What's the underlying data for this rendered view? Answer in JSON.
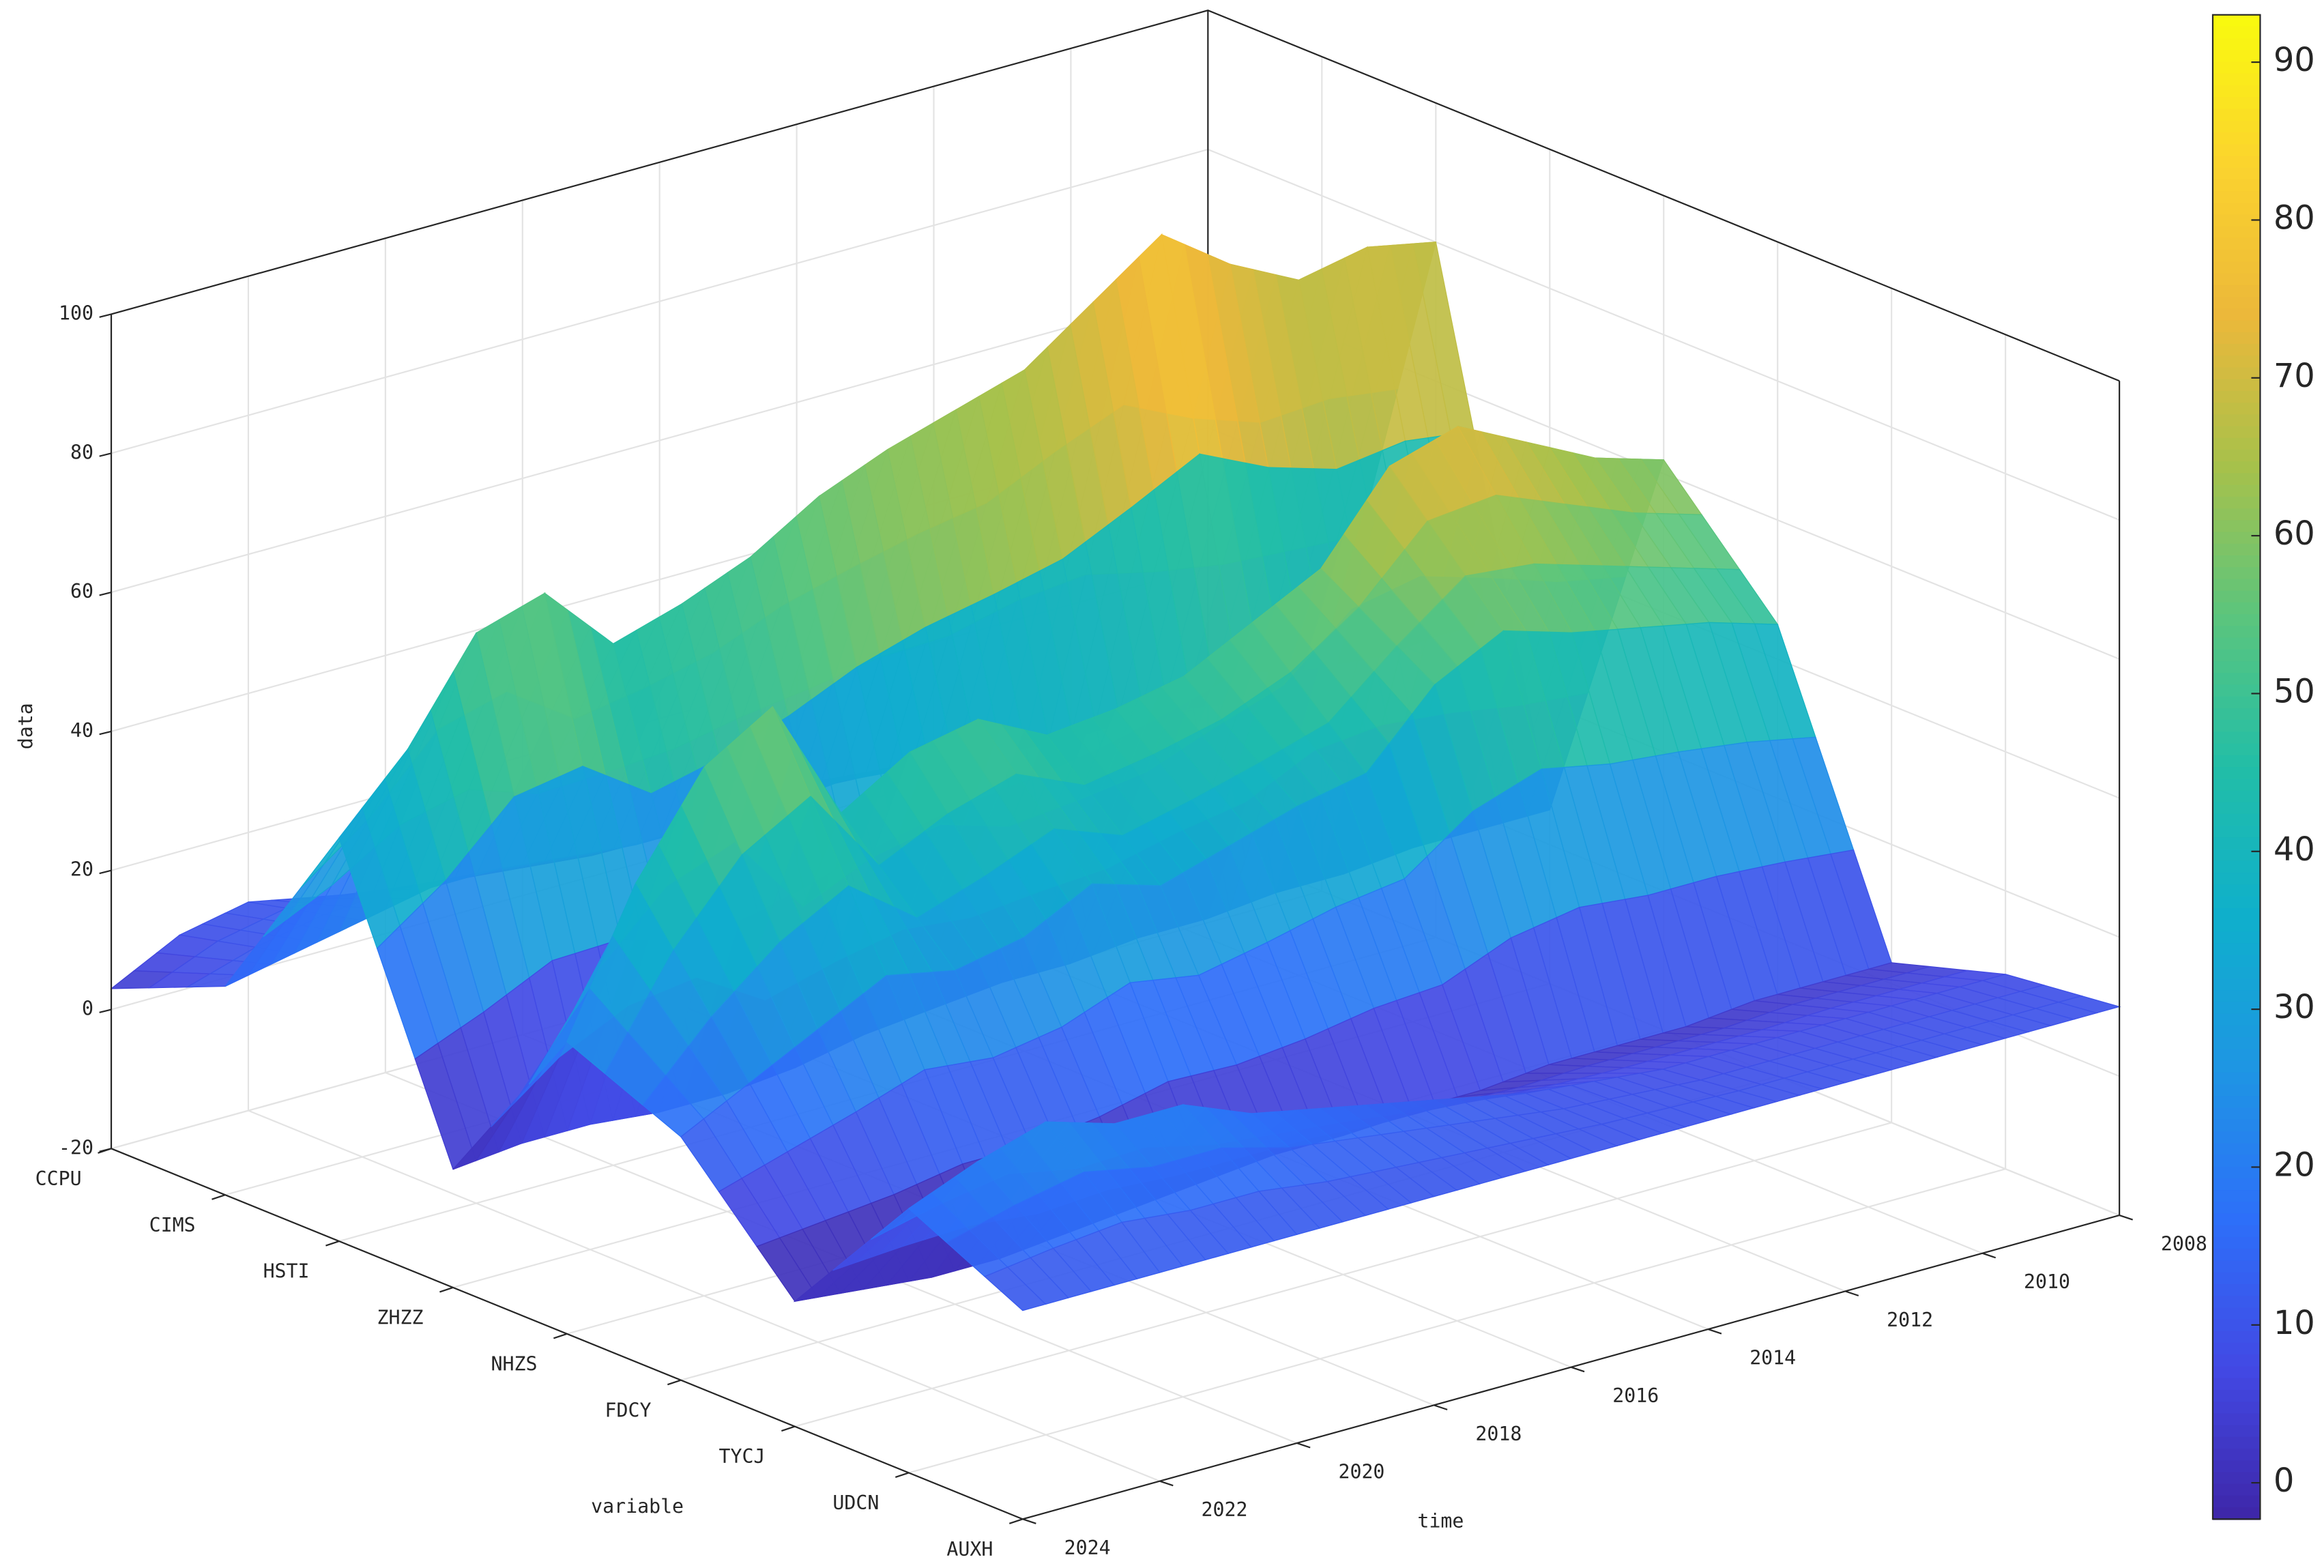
{
  "chart_data": {
    "type": "surface",
    "categories": [
      "CCPU",
      "CIMS",
      "HSTI",
      "ZHZZ",
      "NHZS",
      "FDCY",
      "TYCJ",
      "UDCN",
      "AUXH"
    ],
    "x": [
      2008,
      2009,
      2010,
      2011,
      2012,
      2013,
      2014,
      2015,
      2016,
      2017,
      2018,
      2019,
      2020,
      2021,
      2022,
      2023,
      2024
    ],
    "values": [
      [
        2,
        2,
        2,
        3,
        3,
        4,
        5,
        4,
        3,
        3,
        4,
        5,
        6,
        8,
        10,
        8,
        3
      ],
      [
        10,
        10,
        12,
        12,
        12,
        14,
        14,
        15,
        14,
        14,
        14,
        15,
        16,
        16,
        14,
        12,
        10
      ],
      [
        80,
        82,
        80,
        85,
        92,
        85,
        78,
        75,
        72,
        68,
        62,
        58,
        55,
        65,
        62,
        48,
        38
      ],
      [
        5,
        5,
        5,
        4,
        4,
        3,
        3,
        2,
        2,
        1,
        0,
        -2,
        -3,
        -3,
        -2,
        -2,
        -3
      ],
      [
        62,
        65,
        70,
        75,
        72,
        60,
        55,
        50,
        48,
        47,
        52,
        50,
        44,
        62,
        56,
        42,
        22
      ],
      [
        45,
        48,
        50,
        52,
        55,
        50,
        40,
        38,
        35,
        32,
        35,
        30,
        28,
        30,
        25,
        20,
        15
      ],
      [
        3,
        3,
        3,
        2,
        2,
        2,
        1,
        1,
        0,
        0,
        -1,
        -2,
        -3,
        -4,
        -4,
        -3,
        -2
      ],
      [
        8,
        8,
        8,
        8,
        8,
        8,
        9,
        10,
        12,
        14,
        16,
        18,
        22,
        22,
        25,
        22,
        18
      ],
      [
        10,
        10,
        10,
        10,
        10,
        10,
        10,
        10,
        10,
        10,
        10,
        10,
        10,
        10,
        10,
        10,
        10
      ]
    ],
    "xlabel": "time",
    "ylabel": "variable",
    "zlabel": "data",
    "xlim": [
      2008,
      2024
    ],
    "xticks": [
      2008,
      2010,
      2012,
      2014,
      2016,
      2018,
      2020,
      2022,
      2024
    ],
    "zlim": [
      -20,
      100
    ],
    "zticks": [
      -20,
      0,
      20,
      40,
      60,
      80,
      100
    ],
    "clim": [
      -2.3,
      93
    ],
    "cticks": [
      0,
      10,
      20,
      30,
      40,
      50,
      60,
      70,
      80,
      90
    ],
    "colormap": [
      "#3e26a8",
      "#4249e4",
      "#2d6ff9",
      "#1e96e3",
      "#0fafcc",
      "#22bea7",
      "#5bc57d",
      "#a7c14b",
      "#ecb83a",
      "#fbd32e",
      "#f9fb0e"
    ],
    "grid": true
  }
}
